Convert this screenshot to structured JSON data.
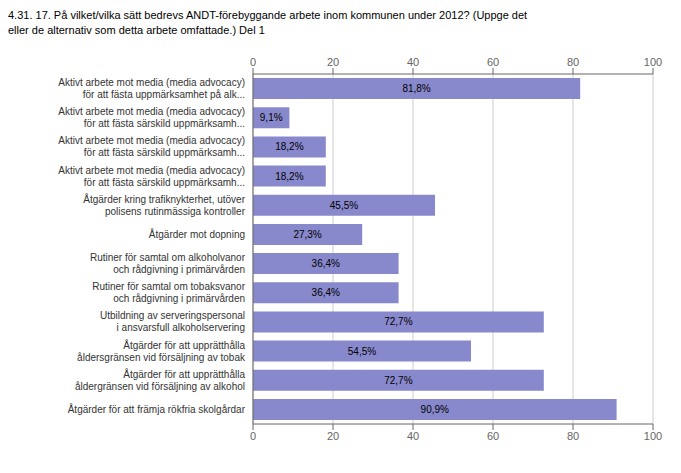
{
  "chart_data": {
    "type": "bar",
    "orientation": "horizontal",
    "title": "4.31. 17. På vilket/vilka sätt bedrevs ANDT-förebyggande arbete inom kommunen under 2012? (Uppge det\neller de alternativ som detta arbete omfattade.) Del 1",
    "categories": [
      "Aktivt arbete mot media (media advocacy)\nför att fästa uppmärksamhet på alk...",
      "Aktivt arbete mot media (media advocacy)\nför att fästa särskild uppmärksamh...",
      "Aktivt arbete mot media (media advocacy)\nför att fästa särskild uppmärksamh...",
      "Aktivt arbete mot media (media advocacy)\nför att fästa särskild uppmärksamh...",
      "Åtgärder kring trafiknykterhet, utöver\npolisens rutinmässiga kontroller",
      "Åtgärder mot dopning",
      "Rutiner för samtal om alkoholvanor\noch rådgivning i primärvården",
      "Rutiner för samtal om tobaksvanor\noch rådgivning i primärvården",
      "Utbildning av serveringspersonal\ni ansvarsfull alkoholservering",
      "Åtgärder för att upprätthålla\nåldersgränsen vid försäljning av tobak",
      "Åtgärder för att upprätthålla\nåldergränsen vid försäljning av alkohol",
      "Åtgärder för att främja rökfria skolgårdar"
    ],
    "values": [
      81.8,
      9.1,
      18.2,
      18.2,
      45.5,
      27.3,
      36.4,
      36.4,
      72.7,
      54.5,
      72.7,
      90.9
    ],
    "value_labels": [
      "81,8%",
      "9,1%",
      "18,2%",
      "18,2%",
      "45,5%",
      "27,3%",
      "36,4%",
      "36,4%",
      "72,7%",
      "54,5%",
      "72,7%",
      "90,9%"
    ],
    "color": "#8888cc",
    "xlim": [
      0,
      100
    ],
    "xticks": [
      0,
      20,
      40,
      60,
      80,
      100
    ],
    "grid": true,
    "data_labels": true
  }
}
